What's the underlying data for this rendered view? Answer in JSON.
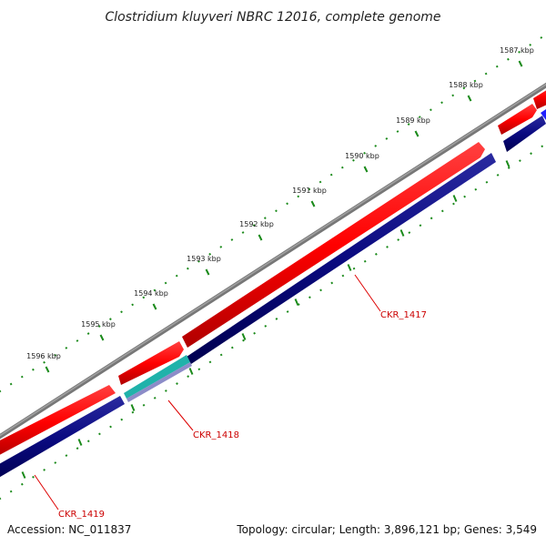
{
  "title": "Clostridium kluyveri NBRC 12016, complete genome",
  "footer": {
    "accession": "Accession: NC_011837",
    "topology": "Topology: circular; Length: 3,896,121 bp; Genes: 3,549"
  },
  "ticks": [
    {
      "label": "1587 kbp"
    },
    {
      "label": "1588 kbp"
    },
    {
      "label": "1589 kbp"
    },
    {
      "label": "1590 kbp"
    },
    {
      "label": "1591 kbp"
    },
    {
      "label": "1592 kbp"
    },
    {
      "label": "1593 kbp"
    },
    {
      "label": "1594 kbp"
    },
    {
      "label": "1595 kbp"
    },
    {
      "label": "1596 kbp"
    }
  ],
  "genes": [
    {
      "label": "CKR_1417"
    },
    {
      "label": "CKR_1418"
    },
    {
      "label": "CKR_1419"
    }
  ],
  "colors": {
    "forward": "#ff0000",
    "reverse": "#0a0a80",
    "rna": "#20b2aa",
    "backbone": "#808080",
    "ticks": "#1a8a1a",
    "label": "#cc0000"
  }
}
